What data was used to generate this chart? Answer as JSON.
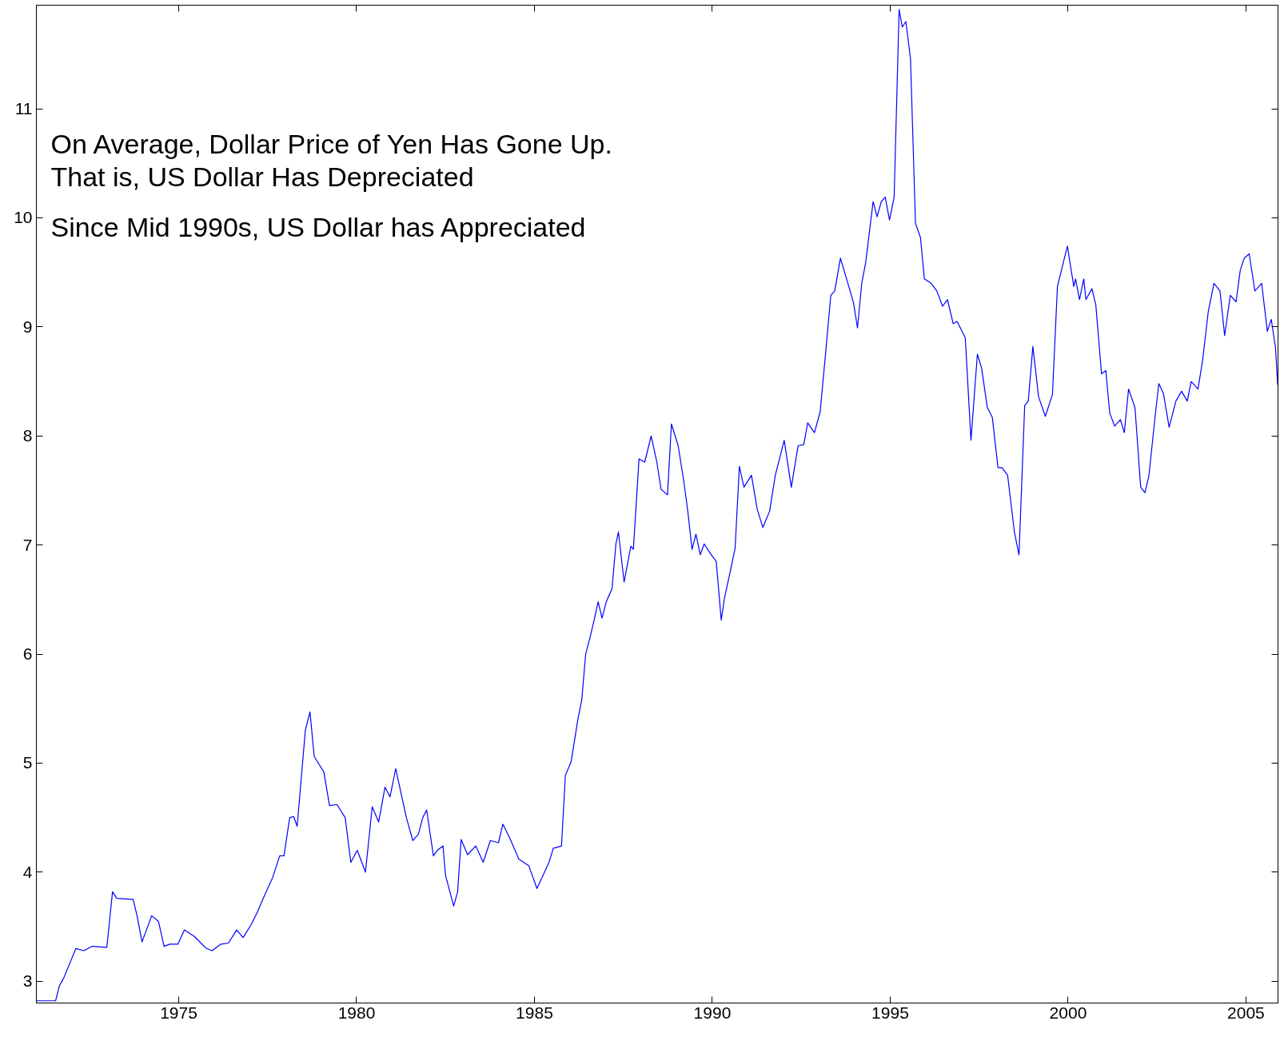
{
  "chart_data": {
    "type": "line",
    "x": [
      1971.0,
      1971.54,
      1971.65,
      1971.77,
      1972.11,
      1972.34,
      1972.57,
      1972.98,
      1973.14,
      1973.26,
      1973.72,
      1973.83,
      1973.97,
      1974.24,
      1974.43,
      1974.59,
      1974.75,
      1974.98,
      1975.16,
      1975.44,
      1975.78,
      1975.94,
      1976.19,
      1976.4,
      1976.63,
      1976.81,
      1977.04,
      1977.22,
      1977.39,
      1977.64,
      1977.84,
      1977.96,
      1978.12,
      1978.23,
      1978.33,
      1978.56,
      1978.69,
      1978.81,
      1979.08,
      1979.24,
      1979.45,
      1979.68,
      1979.84,
      1980.02,
      1980.25,
      1980.44,
      1980.62,
      1980.8,
      1980.94,
      1981.1,
      1981.4,
      1981.58,
      1981.74,
      1981.86,
      1981.97,
      1982.16,
      1982.27,
      1982.43,
      1982.5,
      1982.73,
      1982.84,
      1982.94,
      1983.12,
      1983.35,
      1983.56,
      1983.76,
      1983.99,
      1984.11,
      1984.31,
      1984.56,
      1984.84,
      1985.07,
      1985.41,
      1985.53,
      1985.76,
      1985.87,
      1986.03,
      1986.22,
      1986.33,
      1986.44,
      1986.56,
      1986.67,
      1986.79,
      1986.9,
      1987.02,
      1987.18,
      1987.29,
      1987.36,
      1987.52,
      1987.71,
      1987.78,
      1987.94,
      1988.1,
      1988.28,
      1988.44,
      1988.56,
      1988.74,
      1988.85,
      1989.04,
      1989.2,
      1989.31,
      1989.43,
      1989.54,
      1989.66,
      1989.77,
      1989.95,
      1990.11,
      1990.25,
      1990.34,
      1990.5,
      1990.64,
      1990.76,
      1990.89,
      1991.1,
      1991.26,
      1991.42,
      1991.61,
      1991.77,
      1992.02,
      1992.22,
      1992.41,
      1992.57,
      1992.68,
      1992.87,
      1993.03,
      1993.17,
      1993.33,
      1993.44,
      1993.6,
      1993.81,
      1993.97,
      1994.08,
      1994.2,
      1994.31,
      1994.52,
      1994.63,
      1994.75,
      1994.86,
      1994.98,
      1995.11,
      1995.25,
      1995.34,
      1995.44,
      1995.57,
      1995.71,
      1995.85,
      1995.96,
      1996.15,
      1996.31,
      1996.47,
      1996.61,
      1996.77,
      1996.88,
      1997.11,
      1997.27,
      1997.45,
      1997.57,
      1997.73,
      1997.87,
      1998.03,
      1998.14,
      1998.3,
      1998.49,
      1998.62,
      1998.78,
      1998.88,
      1999.01,
      1999.17,
      1999.36,
      1999.56,
      1999.7,
      1999.98,
      2000.16,
      2000.21,
      2000.32,
      2000.44,
      2000.5,
      2000.67,
      2000.78,
      2000.94,
      2001.06,
      2001.17,
      2001.31,
      2001.47,
      2001.58,
      2001.7,
      2001.88,
      2002.04,
      2002.16,
      2002.27,
      2002.43,
      2002.55,
      2002.68,
      2002.84,
      2003.03,
      2003.19,
      2003.35,
      2003.46,
      2003.65,
      2003.78,
      2003.94,
      2004.1,
      2004.27,
      2004.4,
      2004.56,
      2004.72,
      2004.84,
      2004.95,
      2005.09,
      2005.25,
      2005.44,
      2005.6,
      2005.71,
      2005.83,
      2005.89
    ],
    "series": [
      {
        "color": "#0000ff",
        "values": [
          2.82,
          2.82,
          2.96,
          3.03,
          3.3,
          3.28,
          3.32,
          3.31,
          3.82,
          3.76,
          3.75,
          3.6,
          3.36,
          3.6,
          3.55,
          3.32,
          3.34,
          3.34,
          3.47,
          3.41,
          3.3,
          3.28,
          3.34,
          3.35,
          3.47,
          3.4,
          3.52,
          3.64,
          3.77,
          3.95,
          4.15,
          4.15,
          4.5,
          4.51,
          4.42,
          5.3,
          5.47,
          5.06,
          4.92,
          4.61,
          4.62,
          4.5,
          4.09,
          4.2,
          4.0,
          4.6,
          4.46,
          4.78,
          4.69,
          4.95,
          4.5,
          4.29,
          4.35,
          4.5,
          4.57,
          4.15,
          4.2,
          4.24,
          3.97,
          3.69,
          3.82,
          4.3,
          4.16,
          4.24,
          4.09,
          4.29,
          4.27,
          4.44,
          4.31,
          4.12,
          4.06,
          3.85,
          4.09,
          4.22,
          4.24,
          4.89,
          5.01,
          5.4,
          5.58,
          6.0,
          6.15,
          6.3,
          6.48,
          6.33,
          6.48,
          6.6,
          7.01,
          7.12,
          6.66,
          6.99,
          6.96,
          7.79,
          7.76,
          8.0,
          7.76,
          7.51,
          7.46,
          8.11,
          7.91,
          7.58,
          7.31,
          6.96,
          7.1,
          6.91,
          7.01,
          6.92,
          6.85,
          6.31,
          6.51,
          6.75,
          6.97,
          7.72,
          7.53,
          7.64,
          7.33,
          7.16,
          7.31,
          7.64,
          7.96,
          7.53,
          7.91,
          7.92,
          8.12,
          8.03,
          8.22,
          8.71,
          9.29,
          9.33,
          9.63,
          9.4,
          9.22,
          8.99,
          9.4,
          9.59,
          10.15,
          10.01,
          10.15,
          10.19,
          9.98,
          10.19,
          11.91,
          11.75,
          11.8,
          11.46,
          9.95,
          9.82,
          9.44,
          9.4,
          9.33,
          9.19,
          9.25,
          9.03,
          9.05,
          8.9,
          7.96,
          8.75,
          8.62,
          8.26,
          8.17,
          7.71,
          7.71,
          7.64,
          7.12,
          6.91,
          8.28,
          8.32,
          8.82,
          8.36,
          8.18,
          8.38,
          9.37,
          9.74,
          9.37,
          9.44,
          9.25,
          9.44,
          9.25,
          9.35,
          9.2,
          8.57,
          8.6,
          8.21,
          8.09,
          8.15,
          8.03,
          8.43,
          8.26,
          7.53,
          7.48,
          7.63,
          8.13,
          8.48,
          8.39,
          8.08,
          8.32,
          8.41,
          8.32,
          8.5,
          8.43,
          8.69,
          9.14,
          9.4,
          9.33,
          8.92,
          9.29,
          9.23,
          9.52,
          9.63,
          9.67,
          9.33,
          9.4,
          8.96,
          9.07,
          8.81,
          8.47
        ]
      }
    ],
    "xlim": [
      1971.0,
      2005.9
    ],
    "ylim": [
      2.8,
      11.95
    ],
    "xticks": [
      1975,
      1980,
      1985,
      1990,
      1995,
      2000,
      2005
    ],
    "yticks": [
      3,
      4,
      5,
      6,
      7,
      8,
      9,
      10,
      11
    ],
    "grid": false,
    "annotations": [
      "On Average, Dollar Price of Yen Has Gone Up.",
      "That is, US Dollar Has Depreciated",
      "Since Mid 1990s, US Dollar has Appreciated"
    ]
  }
}
